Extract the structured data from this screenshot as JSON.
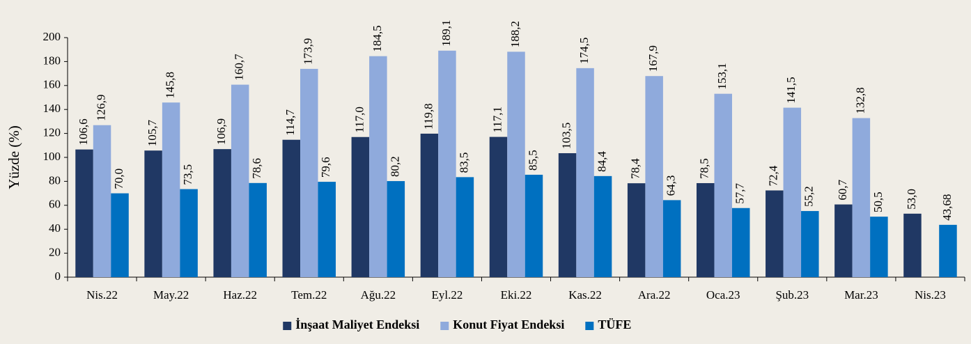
{
  "chart_data": {
    "type": "bar",
    "y_label": "Yüzde (%)",
    "categories": [
      "Nis.22",
      "May.22",
      "Haz.22",
      "Tem.22",
      "Ağu.22",
      "Eyl.22",
      "Eki.22",
      "Kas.22",
      "Ara.22",
      "Oca.23",
      "Şub.23",
      "Mar.23",
      "Nis.23"
    ],
    "series": [
      {
        "name": "İnşaat Maliyet Endeksi",
        "color": "#203864",
        "values": [
          106.6,
          105.7,
          106.9,
          114.7,
          117.0,
          119.8,
          117.1,
          103.5,
          78.4,
          78.5,
          72.4,
          60.7,
          53.0
        ],
        "value_labels": [
          "106,6",
          "105,7",
          "106,9",
          "114,7",
          "117,0",
          "119,8",
          "117,1",
          "103,5",
          "78,4",
          "78,5",
          "72,4",
          "60,7",
          "53,0"
        ]
      },
      {
        "name": "Konut Fiyat Endeksi",
        "color": "#8faadc",
        "values": [
          126.9,
          145.8,
          160.7,
          173.9,
          184.5,
          189.1,
          188.2,
          174.5,
          167.9,
          153.1,
          141.5,
          132.8,
          null
        ],
        "value_labels": [
          "126,9",
          "145,8",
          "160,7",
          "173,9",
          "184,5",
          "189,1",
          "188,2",
          "174,5",
          "167,9",
          "153,1",
          "141,5",
          "132,8",
          null
        ]
      },
      {
        "name": "TÜFE",
        "color": "#0070c0",
        "values": [
          70.0,
          73.5,
          78.6,
          79.6,
          80.2,
          83.5,
          85.5,
          84.4,
          64.3,
          57.7,
          55.2,
          50.5,
          43.68
        ],
        "value_labels": [
          "70,0",
          "73,5",
          "78,6",
          "79,6",
          "80,2",
          "83,5",
          "85,5",
          "84,4",
          "64,3",
          "57,7",
          "55,2",
          "50,5",
          "43,68"
        ]
      }
    ],
    "ylim": [
      0,
      200
    ],
    "yticks": [
      0,
      20,
      40,
      60,
      80,
      100,
      120,
      140,
      160,
      180,
      200
    ],
    "legend": "bottom"
  }
}
